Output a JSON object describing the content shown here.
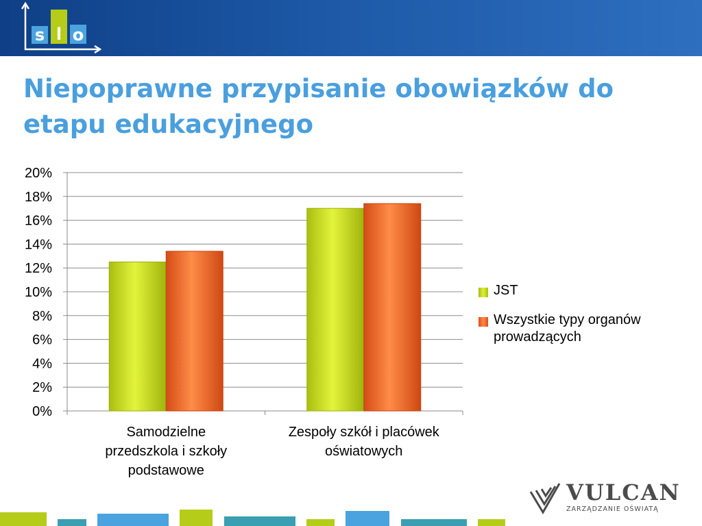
{
  "header": {
    "logo": {
      "letters": [
        "s",
        "l",
        "o"
      ],
      "colors": [
        "#4aa3df",
        "#b5cc18",
        "#4aa3df"
      ]
    }
  },
  "slide": {
    "title": "Niepoprawne przypisanie obowiązków do etapu edukacyjnego"
  },
  "chart_data": {
    "type": "bar",
    "categories": [
      [
        "Samodzielne",
        "przedszkola i szkoły",
        "podstawowe"
      ],
      [
        "Zespoły szkół i placówek",
        "oświatowych"
      ]
    ],
    "series": [
      {
        "name": "JST",
        "values": [
          12.5,
          17.0
        ],
        "color": "#c8dc14"
      },
      {
        "name": "Wszystkie typy organów prowadzących",
        "values": [
          13.4,
          17.4
        ],
        "color": "#f26a2a"
      }
    ],
    "ylim": [
      0,
      20
    ],
    "ytick_step": 2,
    "ytick_suffix": "%",
    "grid": true,
    "legend_position": "right"
  },
  "legend": {
    "items": [
      {
        "label": "JST",
        "color": "#c8dc14"
      },
      {
        "label_lines": [
          "Wszystkie typy organów",
          "prowadzących"
        ],
        "color": "#f26a2a"
      }
    ]
  },
  "brand": {
    "name": "VULCAN",
    "subtitle": "ZARZĄDZANIE OŚWIATĄ"
  },
  "footer": {
    "bar_colors": [
      "#b5cc18",
      "#4aa3df",
      "#3a9fb0"
    ]
  }
}
